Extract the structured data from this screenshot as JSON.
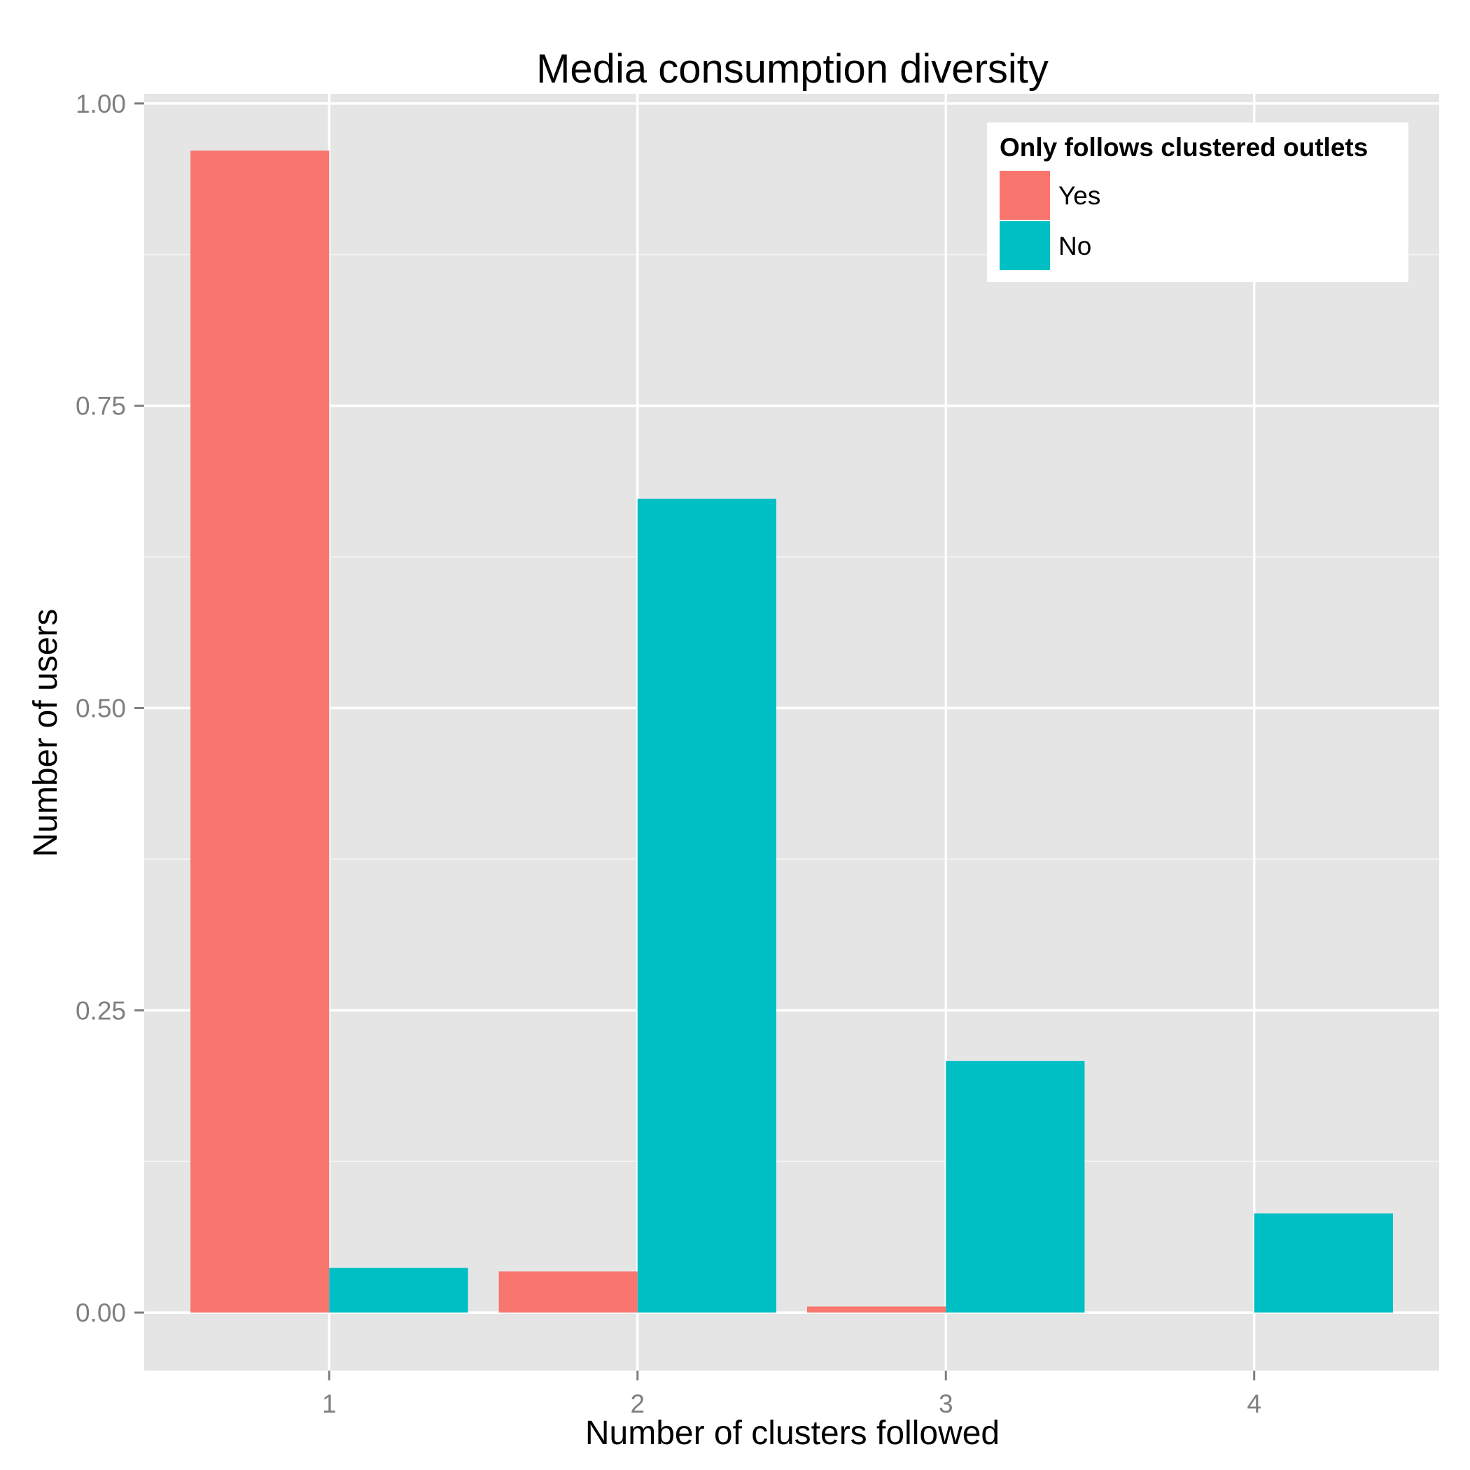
{
  "chart_data": {
    "type": "bar",
    "title": "Media consumption diversity",
    "xlabel": "Number of clusters followed",
    "ylabel": "Number of users",
    "categories": [
      "1",
      "2",
      "3",
      "4"
    ],
    "series": [
      {
        "name": "Yes",
        "color": "#F8766D",
        "values": [
          0.961,
          0.034,
          0.005,
          0.0
        ]
      },
      {
        "name": "No",
        "color": "#00BFC4",
        "values": [
          0.037,
          0.673,
          0.208,
          0.082
        ]
      }
    ],
    "ylim": [
      -0.048,
      1.008
    ],
    "yticks": [
      0.0,
      0.25,
      0.5,
      0.75,
      1.0
    ],
    "ytick_labels": [
      "0.00",
      "0.25",
      "0.50",
      "0.75",
      "1.00"
    ],
    "legend": {
      "title": "Only follows clustered outlets",
      "placement": "top-right"
    },
    "grid": true,
    "panel_background": "#E5E5E5",
    "grid_color": "#FFFFFF"
  }
}
